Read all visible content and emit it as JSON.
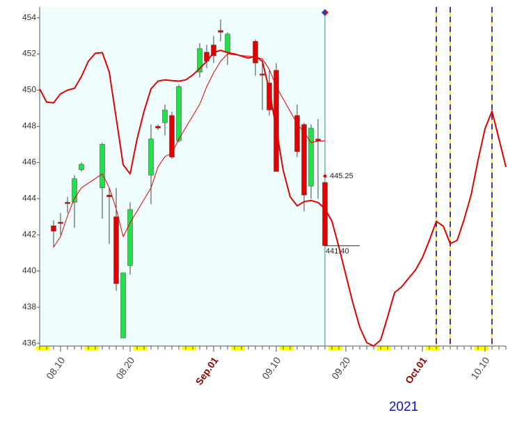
{
  "chart_data": {
    "type": "candlestick",
    "year": 2021,
    "xlim": [
      "08.07",
      "10.13"
    ],
    "ylim": [
      435.85,
      454.6
    ],
    "yticks": [
      436,
      438,
      440,
      442,
      444,
      446,
      448,
      450,
      452,
      454
    ],
    "xticks": [
      {
        "value": "08.10",
        "label": "08.10"
      },
      {
        "value": "08.20",
        "label": "08.20"
      },
      {
        "value": "09.01",
        "label": "Sep.01"
      },
      {
        "value": "09.10",
        "label": "09.10"
      },
      {
        "value": "09.20",
        "label": "09.20"
      },
      {
        "value": "10.01",
        "label": "Oct.01"
      },
      {
        "value": "10.10",
        "label": "10.10"
      }
    ],
    "up_color": "#22e04a",
    "down_color": "#e00000",
    "candles": {
      "x": [
        "08.09",
        "08.10",
        "08.11",
        "08.12",
        "08.13",
        "08.16",
        "08.17",
        "08.18",
        "08.19",
        "08.20",
        "08.23",
        "08.24",
        "08.25",
        "08.26",
        "08.27",
        "08.30",
        "08.31",
        "09.01",
        "09.02",
        "09.03",
        "09.07",
        "09.08",
        "09.09",
        "09.10",
        "09.13",
        "09.14",
        "09.15",
        "09.16",
        "09.17"
      ],
      "open": [
        442.5,
        442.7,
        443.8,
        443.8,
        445.6,
        444.6,
        444.2,
        443.0,
        436.3,
        440.3,
        445.3,
        448.0,
        448.2,
        448.6,
        447.2,
        451.0,
        452.1,
        452.5,
        453.3,
        452.1,
        452.7,
        450.9,
        450.4,
        451.1,
        448.6,
        448.1,
        444.7,
        447.3,
        444.9
      ],
      "high": [
        442.8,
        443.2,
        444.1,
        445.3,
        446.0,
        447.1,
        444.6,
        444.6,
        439.9,
        443.8,
        448.1,
        448.1,
        449.2,
        448.8,
        450.3,
        452.6,
        452.5,
        453.0,
        453.9,
        453.2,
        452.8,
        451.5,
        451.1,
        451.5,
        449.2,
        448.2,
        448.1,
        448.4,
        444.9
      ],
      "low": [
        441.3,
        442.0,
        443.2,
        442.4,
        445.5,
        442.9,
        441.5,
        438.9,
        436.3,
        439.8,
        443.7,
        447.8,
        447.5,
        446.2,
        447.1,
        450.7,
        451.2,
        451.5,
        452.7,
        451.4,
        450.8,
        448.9,
        448.6,
        445.5,
        446.3,
        443.3,
        444.0,
        444.0,
        441.4
      ],
      "close": [
        442.2,
        442.7,
        443.8,
        445.1,
        445.9,
        447.0,
        444.1,
        439.3,
        439.9,
        443.4,
        447.3,
        447.9,
        448.9,
        446.3,
        450.2,
        452.3,
        451.6,
        451.9,
        453.2,
        453.1,
        451.5,
        450.9,
        448.9,
        445.5,
        446.6,
        444.2,
        447.9,
        447.2,
        441.4
      ]
    },
    "series": [
      {
        "color": "#e00000",
        "width": 2,
        "x": [
          "08.07",
          "08.08",
          "08.09",
          "08.10",
          "08.11",
          "08.12",
          "08.13",
          "08.14",
          "08.15",
          "08.16",
          "08.17",
          "08.18",
          "08.19",
          "08.20",
          "08.21",
          "08.22",
          "08.23",
          "08.24",
          "08.25",
          "08.26",
          "08.27",
          "08.28",
          "08.29",
          "08.30",
          "08.31",
          "09.01",
          "09.02",
          "09.03",
          "09.04",
          "09.05",
          "09.06",
          "09.07",
          "09.08",
          "09.09",
          "09.10",
          "09.11",
          "09.12",
          "09.13",
          "09.14",
          "09.15",
          "09.16",
          "09.17",
          "09.18",
          "09.19",
          "09.20",
          "09.21",
          "09.22",
          "09.23",
          "09.24",
          "09.25",
          "09.26",
          "09.27",
          "09.28",
          "09.29",
          "09.30",
          "10.01",
          "10.02",
          "10.03",
          "10.04",
          "10.05",
          "10.06",
          "10.07",
          "10.08",
          "10.09",
          "10.10",
          "10.11",
          "10.12",
          "10.13"
        ],
        "values": [
          450.07,
          449.34,
          449.3,
          449.8,
          450.0,
          450.1,
          450.75,
          451.6,
          452.04,
          452.08,
          451.0,
          448.45,
          445.87,
          445.37,
          447.3,
          448.84,
          450.07,
          450.5,
          450.57,
          450.53,
          450.5,
          450.57,
          450.84,
          451.2,
          451.6,
          452.08,
          452.2,
          452.08,
          452.0,
          451.88,
          451.77,
          451.88,
          451.6,
          450.0,
          447.87,
          445.56,
          444.1,
          443.6,
          443.83,
          443.9,
          443.79,
          443.44,
          442.75,
          441.32,
          439.78,
          438.24,
          436.89,
          436.04,
          435.85,
          436.19,
          437.46,
          438.81,
          439.12,
          439.59,
          440.05,
          440.74,
          441.7,
          442.75,
          442.48,
          441.51,
          441.7,
          442.86,
          444.21,
          446.14,
          447.87,
          448.84,
          447.3,
          445.75
        ]
      },
      {
        "color": "#e00000",
        "width": 1,
        "x": [
          "08.09",
          "08.10",
          "08.11",
          "08.12",
          "08.13",
          "08.16",
          "08.17",
          "08.18",
          "08.19",
          "08.20",
          "08.23",
          "08.24",
          "08.25",
          "08.26",
          "08.27",
          "08.30",
          "08.31",
          "09.01",
          "09.02",
          "09.03",
          "09.07",
          "09.08",
          "09.09",
          "09.10",
          "09.13",
          "09.14",
          "09.15",
          "09.16",
          "09.17"
        ],
        "values": [
          441.32,
          441.9,
          443.05,
          444.02,
          444.6,
          445.37,
          444.6,
          443.44,
          441.9,
          442.67,
          444.6,
          445.75,
          446.33,
          446.52,
          447.3,
          449.22,
          450.19,
          450.96,
          451.6,
          452.0,
          451.84,
          451.73,
          451.15,
          450.19,
          448.14,
          447.68,
          447.1,
          447.18,
          447.2
        ]
      }
    ],
    "annotations": [
      {
        "x": "09.17",
        "value": 445.25,
        "label": "445.25"
      },
      {
        "x": "09.17",
        "value": 441.4,
        "label": "441.40"
      }
    ],
    "current_line": "09.17",
    "dashed_lines": [
      "10.03",
      "10.05",
      "10.11"
    ]
  }
}
